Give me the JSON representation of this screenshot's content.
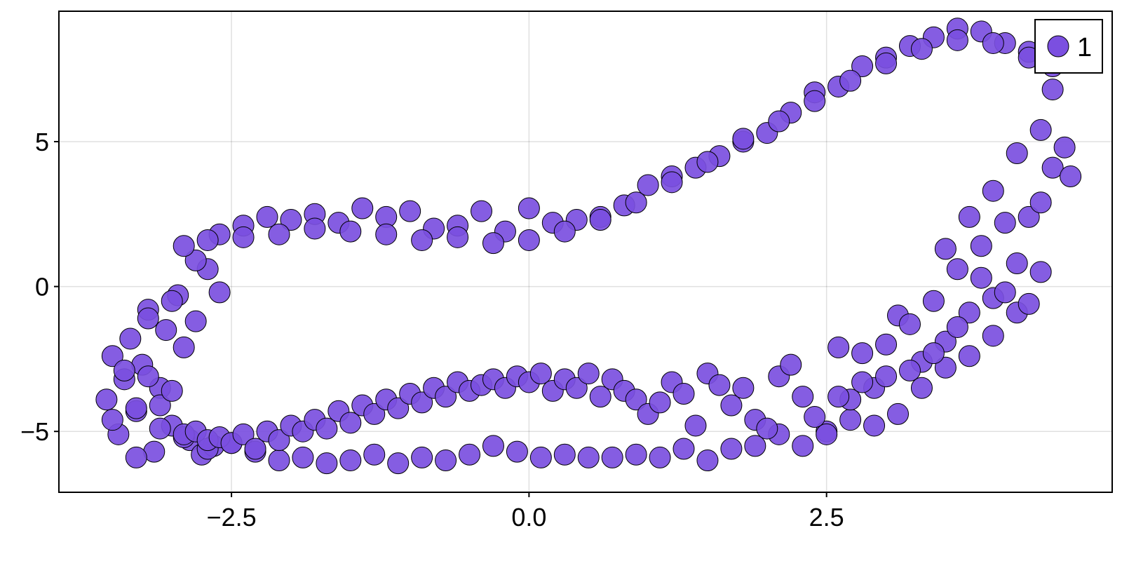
{
  "chart_data": {
    "type": "scatter",
    "title": "",
    "xlabel": "",
    "ylabel": "",
    "xlim": [
      -3.95,
      4.9
    ],
    "ylim": [
      -7.1,
      9.5
    ],
    "x_ticks": [
      {
        "value": -2.5,
        "label": "−2.5"
      },
      {
        "value": 0.0,
        "label": "0.0"
      },
      {
        "value": 2.5,
        "label": "2.5"
      }
    ],
    "y_ticks": [
      {
        "value": -5,
        "label": "−5"
      },
      {
        "value": 0,
        "label": "0"
      },
      {
        "value": 5,
        "label": "5"
      }
    ],
    "grid": true,
    "legend_position": "top-right",
    "series": [
      {
        "name": "1",
        "color": "#7b4fe0",
        "marker": "circle",
        "x": [
          -3.55,
          -3.5,
          -3.45,
          -3.4,
          -3.35,
          -3.3,
          -3.25,
          -3.2,
          -3.15,
          -3.1,
          -3.05,
          -3.0,
          -2.95,
          -2.9,
          -2.85,
          -2.8,
          -2.75,
          -2.7,
          -2.65,
          -2.6,
          -3.5,
          -3.4,
          -3.3,
          -3.2,
          -3.1,
          -3.0,
          -2.9,
          -2.8,
          -2.7,
          -2.6,
          -2.5,
          -2.4,
          -2.3,
          -2.2,
          -2.1,
          -2.0,
          -1.9,
          -1.8,
          -1.7,
          -1.6,
          -1.5,
          -1.4,
          -1.3,
          -1.2,
          -1.1,
          -1.0,
          -0.9,
          -0.8,
          -0.7,
          -0.6,
          -0.5,
          -0.4,
          -0.3,
          -0.2,
          -0.1,
          0.0,
          0.1,
          0.2,
          0.3,
          0.4,
          0.5,
          0.6,
          0.7,
          0.8,
          0.9,
          1.0,
          1.1,
          1.2,
          1.3,
          1.4,
          1.5,
          1.6,
          1.7,
          1.8,
          1.9,
          2.0,
          2.1,
          2.2,
          2.3,
          2.4,
          2.5,
          2.6,
          2.7,
          2.8,
          2.9,
          3.0,
          3.1,
          3.2,
          3.3,
          3.4,
          3.5,
          3.6,
          3.7,
          3.8,
          3.9,
          4.0,
          4.1,
          4.2,
          4.3,
          4.4,
          -3.3,
          -3.2,
          -3.1,
          -3.0,
          -2.9,
          -2.8,
          -2.7,
          -2.6,
          -2.5,
          -2.4,
          -2.3,
          -2.2,
          -2.1,
          -2.0,
          -1.9,
          -1.8,
          -1.7,
          -1.6,
          -1.5,
          -1.4,
          -1.3,
          -1.2,
          -1.1,
          -1.0,
          -0.9,
          -0.8,
          -0.7,
          -0.6,
          -0.5,
          -0.4,
          -0.3,
          -0.2,
          -0.1,
          0.0,
          0.1,
          0.2,
          0.3,
          0.4,
          0.5,
          0.6,
          0.7,
          0.8,
          0.9,
          1.0,
          1.1,
          1.2,
          1.3,
          1.4,
          1.5,
          1.6,
          1.7,
          1.8,
          1.9,
          2.0,
          2.1,
          2.2,
          2.3,
          2.4,
          2.5,
          2.6,
          2.7,
          2.8,
          2.9,
          3.0,
          3.1,
          3.2,
          3.3,
          3.4,
          3.5,
          3.6,
          3.7,
          3.8,
          3.9,
          4.0,
          4.1,
          4.2,
          4.3,
          4.4,
          4.5,
          4.55,
          -2.9,
          -2.7,
          -2.4,
          -2.1,
          -1.8,
          -1.5,
          -1.2,
          -0.9,
          -0.6,
          -0.3,
          0.0,
          0.3,
          0.6,
          0.9,
          1.2,
          1.5,
          1.8,
          2.1,
          2.4,
          2.7,
          3.0,
          3.3,
          3.6,
          3.9,
          4.2,
          4.4,
          4.3,
          4.1,
          3.9,
          3.7,
          3.5,
          3.8,
          4.0,
          4.2,
          3.6,
          3.4,
          3.2,
          3.0,
          2.8,
          2.6
        ],
        "y": [
          -3.9,
          -2.4,
          -5.1,
          -3.2,
          -1.8,
          -4.3,
          -2.7,
          -0.8,
          -5.7,
          -3.5,
          -1.5,
          -4.8,
          -0.3,
          -2.1,
          -5.3,
          -1.2,
          -5.8,
          0.6,
          -5.5,
          -0.2,
          -4.6,
          -2.9,
          -5.9,
          -1.1,
          -4.1,
          -0.5,
          -5.2,
          0.9,
          -5.6,
          1.8,
          -5.4,
          2.1,
          -5.7,
          2.4,
          -6.0,
          2.3,
          -5.9,
          2.5,
          -6.1,
          2.2,
          -6.0,
          2.7,
          -5.8,
          2.4,
          -6.1,
          2.6,
          -5.9,
          2.0,
          -6.0,
          2.1,
          -5.8,
          2.6,
          -5.5,
          1.9,
          -5.7,
          2.7,
          -5.9,
          2.2,
          -5.8,
          2.3,
          -5.9,
          2.4,
          -5.9,
          2.8,
          -5.8,
          3.5,
          -5.9,
          3.8,
          -5.6,
          4.1,
          -6.0,
          4.5,
          -5.6,
          5.0,
          -5.5,
          5.3,
          -5.1,
          6.0,
          -5.5,
          6.7,
          -5.0,
          6.9,
          -4.6,
          7.6,
          -4.8,
          7.9,
          -4.4,
          8.3,
          -3.5,
          8.6,
          -2.8,
          8.9,
          -2.4,
          8.8,
          -1.7,
          8.4,
          -0.9,
          8.1,
          0.5,
          7.6,
          -4.2,
          -3.1,
          -4.9,
          -3.6,
          -5.1,
          -5.0,
          -5.3,
          -5.2,
          -5.4,
          -5.1,
          -5.6,
          -5.0,
          -5.3,
          -4.8,
          -5.0,
          -4.6,
          -4.9,
          -4.3,
          -4.7,
          -4.1,
          -4.4,
          -3.9,
          -4.2,
          -3.7,
          -4.0,
          -3.5,
          -3.8,
          -3.3,
          -3.6,
          -3.4,
          -3.2,
          -3.5,
          -3.1,
          -3.3,
          -3.0,
          -3.6,
          -3.2,
          -3.5,
          -3.0,
          -3.8,
          -3.2,
          -3.6,
          -3.9,
          -4.4,
          -4.0,
          -3.3,
          -3.7,
          -4.8,
          -3.0,
          -3.4,
          -4.1,
          -3.5,
          -4.6,
          -4.9,
          -3.1,
          -2.7,
          -3.8,
          -4.5,
          -5.1,
          -2.1,
          -3.9,
          -2.3,
          -3.5,
          -2.0,
          -1.0,
          -1.3,
          -2.6,
          -0.5,
          -1.9,
          0.6,
          -0.9,
          1.4,
          -0.4,
          2.2,
          0.8,
          2.4,
          2.9,
          4.1,
          4.8,
          3.8,
          1.4,
          1.6,
          1.7,
          1.8,
          2.0,
          1.9,
          1.8,
          1.6,
          1.7,
          1.5,
          1.6,
          1.9,
          2.3,
          2.9,
          3.6,
          4.3,
          5.1,
          5.7,
          6.4,
          7.1,
          7.7,
          8.2,
          8.5,
          8.4,
          7.9,
          6.8,
          5.4,
          4.6,
          3.3,
          2.4,
          1.3,
          0.3,
          -0.2,
          -0.6,
          -1.4,
          -2.3,
          -2.9,
          -3.1,
          -3.3,
          -3.8
        ]
      }
    ]
  }
}
